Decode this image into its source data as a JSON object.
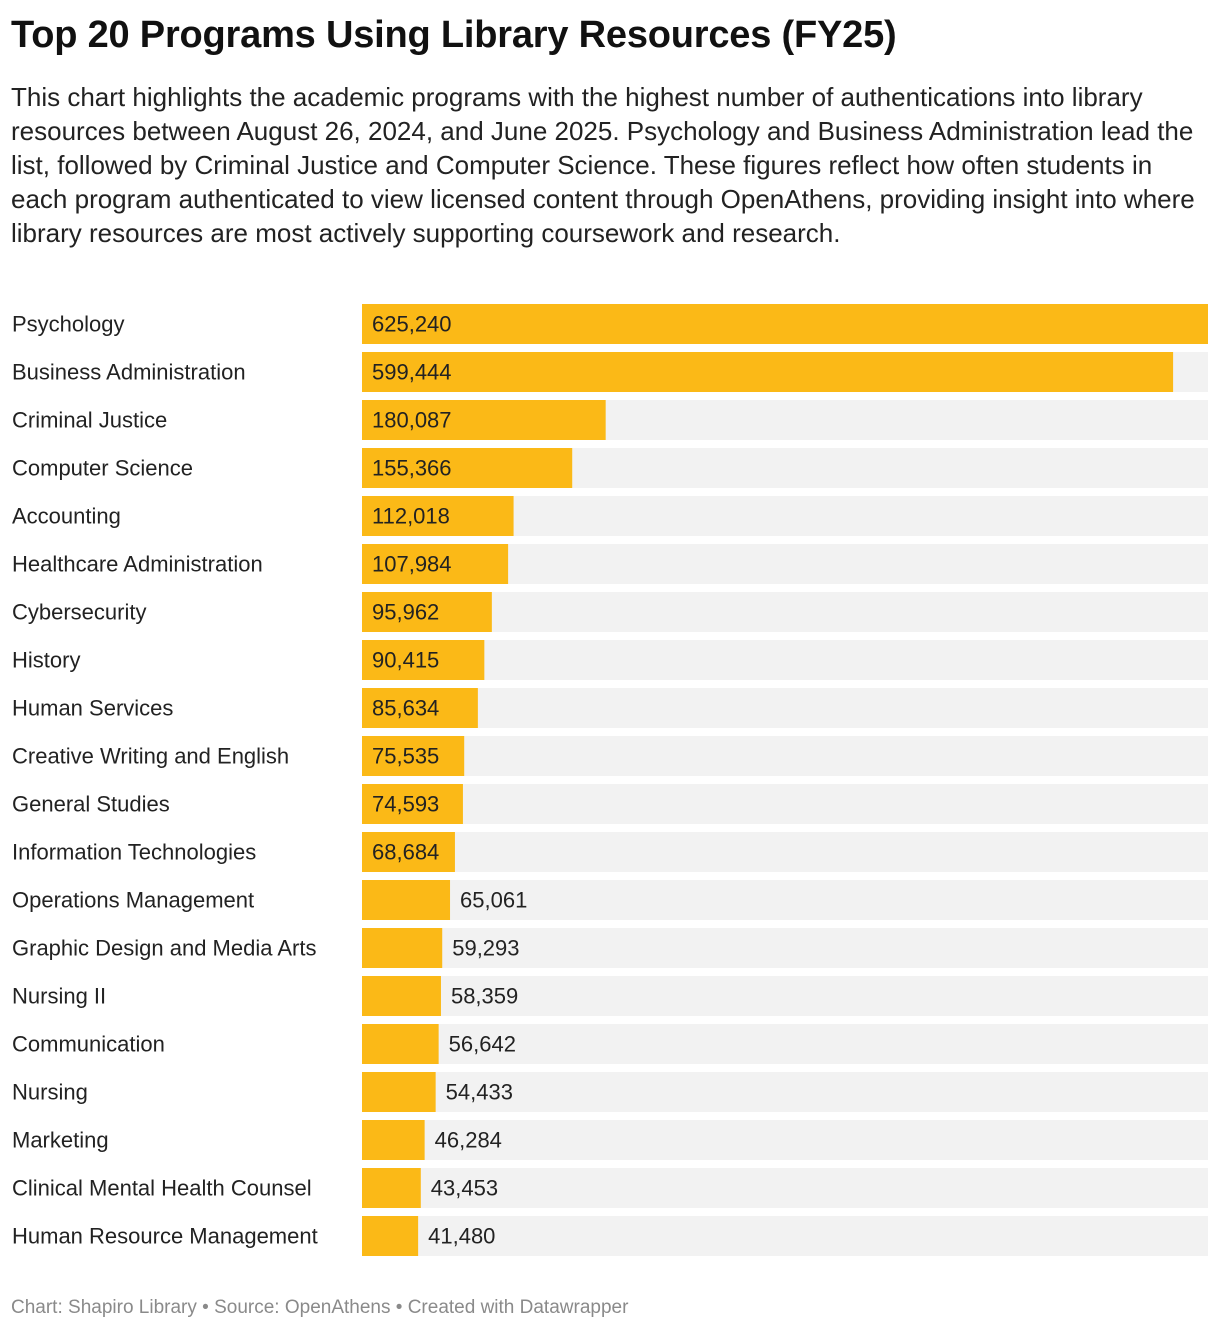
{
  "title": "Top 20 Programs Using Library Resources (FY25)",
  "subtitle": "This chart highlights the academic programs with the highest number of authentications into library resources between August 26, 2024, and June 2025. Psychology and Business Administration lead the list, followed by Criminal Justice and Computer Science. These figures reflect how often students in each program authenticated to view licensed content through OpenAthens, providing insight into where library resources are most actively supporting coursework and research.",
  "footer": {
    "chart_credit": "Chart: Shapiro Library",
    "separator": " • ",
    "source": "Source: OpenAthens",
    "tool": "Created with Datawrapper"
  },
  "colors": {
    "bar": "#FBB917",
    "track": "#F2F2F2",
    "text": "#222222",
    "footer_text": "#8A8A8A"
  },
  "chart_data": {
    "type": "bar",
    "orientation": "horizontal",
    "title": "Top 20 Programs Using Library Resources (FY25)",
    "xlim": [
      0,
      625240
    ],
    "grid": false,
    "categories": [
      "Psychology",
      "Business Administration",
      "Criminal Justice",
      "Computer Science",
      "Accounting",
      "Healthcare Administration",
      "Cybersecurity",
      "History",
      "Human Services",
      "Creative Writing and English",
      "General Studies",
      "Information Technologies",
      "Operations Management",
      "Graphic Design and Media Arts",
      "Nursing II",
      "Communication",
      "Nursing",
      "Marketing",
      "Clinical Mental Health Counsel",
      "Human Resource Management"
    ],
    "values": [
      625240,
      599444,
      180087,
      155366,
      112018,
      107984,
      95962,
      90415,
      85634,
      75535,
      74593,
      68684,
      65061,
      59293,
      58359,
      56642,
      54433,
      46284,
      43453,
      41480
    ],
    "value_labels": [
      "625,240",
      "599,444",
      "180,087",
      "155,366",
      "112,018",
      "107,984",
      "95,962",
      "90,415",
      "85,634",
      "75,535",
      "74,593",
      "68,684",
      "65,061",
      "59,293",
      "58,359",
      "56,642",
      "54,433",
      "46,284",
      "43,453",
      "41,480"
    ]
  }
}
